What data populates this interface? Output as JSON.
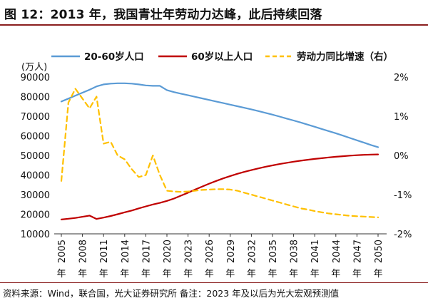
{
  "title": "图 12：2013 年，我国青壮年劳动力达峰，此后持续回落",
  "footer": "资料来源：Wind，联合国，光大证券研究所  备注：2023 年及以后为光大宏观预测值",
  "chart_data": {
    "type": "line",
    "ylabel_left": "(万人)",
    "ylim_left": [
      10000,
      90000
    ],
    "yticks_left": [
      "90000",
      "80000",
      "70000",
      "60000",
      "50000",
      "40000",
      "30000",
      "20000",
      "10000"
    ],
    "ylim_right": [
      -2,
      2
    ],
    "yticks_right": [
      "2%",
      "1%",
      "0%",
      "-1%",
      "-2%"
    ],
    "xlim": [
      2005,
      2050
    ],
    "xtick_labels": [
      "2005年",
      "2008年",
      "2011年",
      "2014年",
      "2017年",
      "2020年",
      "2023年",
      "2026年",
      "2029年",
      "2032年",
      "2035年",
      "2038年",
      "2041年",
      "2044年",
      "2047年",
      "2050年"
    ],
    "legend": [
      "20-60岁人口",
      "60岁以上人口",
      "劳动力同比增速（右）"
    ],
    "colors": {
      "young": "#5b9bd5",
      "old": "#c00000",
      "growth": "#ffc000"
    },
    "x": [
      2005,
      2006,
      2007,
      2008,
      2009,
      2010,
      2011,
      2012,
      2013,
      2014,
      2015,
      2016,
      2017,
      2018,
      2019,
      2020,
      2021,
      2022,
      2023,
      2024,
      2025,
      2026,
      2027,
      2028,
      2029,
      2030,
      2031,
      2032,
      2033,
      2034,
      2035,
      2036,
      2037,
      2038,
      2039,
      2040,
      2041,
      2042,
      2043,
      2044,
      2045,
      2046,
      2047,
      2048,
      2049,
      2050
    ],
    "series": [
      {
        "name": "20-60岁人口",
        "axis": "left",
        "style": "solid",
        "values": [
          77500,
          79000,
          80500,
          82000,
          83500,
          85200,
          86200,
          86600,
          86800,
          86800,
          86600,
          86200,
          85700,
          85500,
          85500,
          83300,
          82300,
          81500,
          80700,
          79900,
          79100,
          78300,
          77500,
          76700,
          75900,
          75100,
          74300,
          73500,
          72600,
          71700,
          70800,
          69800,
          68800,
          67800,
          66800,
          65700,
          64600,
          63500,
          62400,
          61300,
          60100,
          58900,
          57700,
          56500,
          55300,
          54200
        ]
      },
      {
        "name": "60岁以上人口",
        "axis": "left",
        "style": "solid",
        "values": [
          17300,
          17700,
          18100,
          18700,
          19300,
          17600,
          18300,
          19100,
          20000,
          21000,
          21900,
          23000,
          24000,
          25000,
          25800,
          26800,
          28000,
          29500,
          31000,
          32600,
          34100,
          35600,
          37000,
          38300,
          39500,
          40600,
          41600,
          42500,
          43400,
          44200,
          44900,
          45600,
          46200,
          46800,
          47300,
          47800,
          48200,
          48600,
          49000,
          49300,
          49600,
          49900,
          50100,
          50300,
          50400,
          50500
        ]
      },
      {
        "name": "劳动力同比增速（右）",
        "axis": "right",
        "style": "dashed",
        "values": [
          -0.65,
          1.35,
          1.7,
          1.45,
          1.2,
          1.5,
          0.3,
          0.35,
          0.0,
          -0.1,
          -0.35,
          -0.55,
          -0.5,
          0.0,
          -0.5,
          -0.9,
          -0.92,
          -0.93,
          -0.92,
          -0.9,
          -0.88,
          -0.87,
          -0.86,
          -0.86,
          -0.87,
          -0.9,
          -0.95,
          -1.0,
          -1.05,
          -1.1,
          -1.15,
          -1.2,
          -1.25,
          -1.3,
          -1.35,
          -1.38,
          -1.42,
          -1.45,
          -1.48,
          -1.5,
          -1.52,
          -1.54,
          -1.55,
          -1.56,
          -1.57,
          -1.58
        ]
      }
    ]
  }
}
